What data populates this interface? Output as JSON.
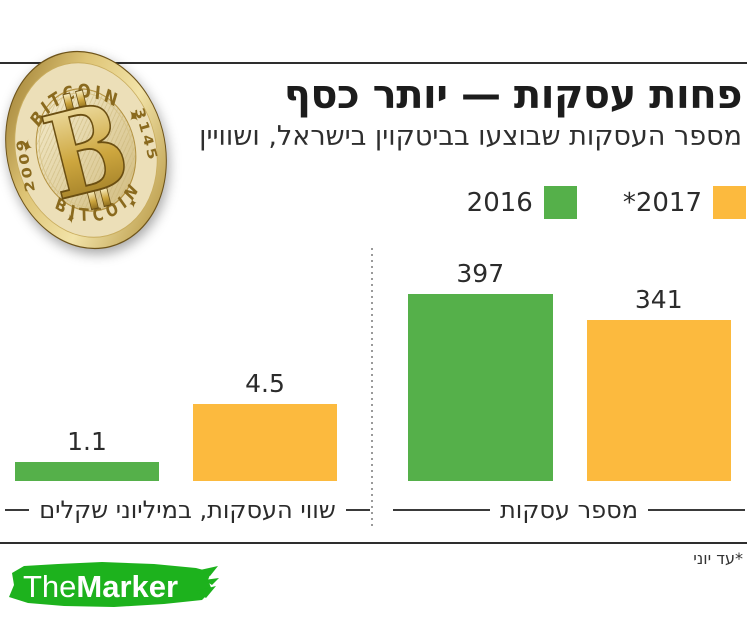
{
  "header": {
    "title": "פחות עסקות — יותר כסף",
    "subtitle": "מספר העסקות שבוצעו בביטקוין בישראל, ושוויין"
  },
  "legend": [
    {
      "label": "2016",
      "color": "#55b04a"
    },
    {
      "label": "*2017",
      "color": "#fcba3e"
    }
  ],
  "chart_data": {
    "type": "bar",
    "direction": "rtl",
    "categories": [
      "2016",
      "2017"
    ],
    "groups": [
      {
        "id": "value",
        "label": "שווי העסקות, במיליוני שקלים",
        "series": [
          {
            "name": "2016",
            "value": 1.1,
            "color": "#55b04a"
          },
          {
            "name": "2017",
            "value": 4.5,
            "color": "#fcba3e"
          }
        ]
      },
      {
        "id": "count",
        "label": "מספר עסקות",
        "series": [
          {
            "name": "2016",
            "value": 397,
            "color": "#55b04a"
          },
          {
            "name": "2017",
            "value": 341,
            "color": "#fcba3e"
          }
        ]
      }
    ],
    "title": "פחות עסקות — יותר כסף",
    "subtitle": "מספר העסקות שבוצעו בביטקוין בישראל, ושוויין",
    "footnote": "*עד יוני",
    "legend_position": "top-right",
    "grid": false
  },
  "coin": {
    "top_text": "✦ BITCOIN ✦",
    "bottom_text": "BITCOIN",
    "left_text": "2009",
    "right_text": "3145",
    "symbol": "B"
  },
  "footer": {
    "footnote": "*עד יוני",
    "logo_the": "The",
    "logo_marker": "Marker",
    "logo_color": "#1db21d"
  }
}
